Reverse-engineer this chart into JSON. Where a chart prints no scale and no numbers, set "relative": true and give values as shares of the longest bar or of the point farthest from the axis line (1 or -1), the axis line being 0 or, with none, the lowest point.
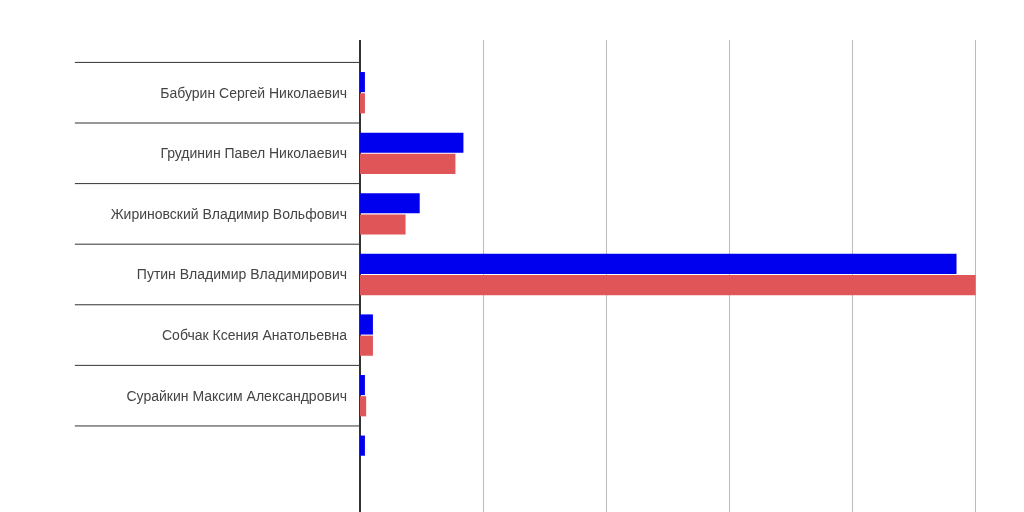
{
  "chart_data": {
    "type": "bar",
    "orientation": "horizontal",
    "relative": true,
    "grid": "x",
    "categories": [
      "Бабурин Сергей Николаевич",
      "Грудинин Павел Николаевич",
      "Жириновский Владимир Вольфович",
      "Путин Владимир Владимирович",
      "Собчак Ксения Анатольевна",
      "Сурайкин Максим Александрович",
      null
    ],
    "series": [
      {
        "color": "#0000ee",
        "values": [
          0.008,
          0.168,
          0.097,
          0.969,
          0.021,
          0.008,
          0.008
        ]
      },
      {
        "color": "#e05558",
        "values": [
          0.008,
          0.155,
          0.074,
          1,
          0.021,
          0.01,
          null
        ]
      }
    ]
  }
}
